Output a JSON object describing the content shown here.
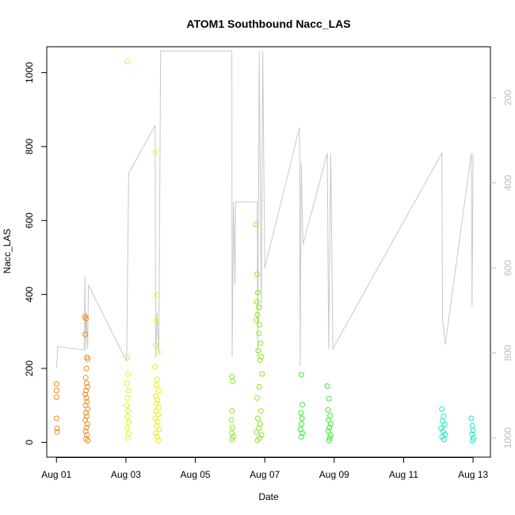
{
  "chart_data": {
    "type": "scatter",
    "title": "ATOM1 Southbound Nacc_LAS",
    "xlabel": "Date",
    "ylabel": "Nacc_LAS",
    "x_ticks": [
      "Aug 01",
      "Aug 03",
      "Aug 05",
      "Aug 07",
      "Aug 09",
      "Aug 11",
      "Aug 13"
    ],
    "y_ticks": [
      0,
      200,
      400,
      600,
      800,
      1000
    ],
    "y2_ticks": [
      200,
      400,
      600,
      800,
      1000
    ],
    "xlim_days": [
      0.72,
      13.5
    ],
    "ylim": [
      -40,
      1070
    ],
    "y2lim": [
      1045,
      80
    ],
    "y2_reversed": true,
    "grid": false,
    "colors": {
      "axis": "#000000",
      "secondary_axis": "#bdbdbd",
      "altitude_line": "#c8c8c8"
    },
    "secondary_series": {
      "name": "",
      "kind": "line",
      "color": "#c8c8c8",
      "points": [
        [
          1.0,
          835
        ],
        [
          1.04,
          785
        ],
        [
          1.8,
          793
        ],
        [
          1.82,
          620
        ],
        [
          1.84,
          793
        ],
        [
          1.86,
          705
        ],
        [
          1.9,
          790
        ],
        [
          1.92,
          640
        ],
        [
          3.02,
          820
        ],
        [
          3.08,
          378
        ],
        [
          3.84,
          265
        ],
        [
          3.86,
          812
        ],
        [
          3.9,
          705
        ],
        [
          3.95,
          800
        ],
        [
          4.0,
          90
        ],
        [
          4.3,
          90
        ],
        [
          6.05,
          90
        ],
        [
          6.06,
          810
        ],
        [
          6.1,
          445
        ],
        [
          6.14,
          640
        ],
        [
          6.16,
          445
        ],
        [
          6.78,
          445
        ],
        [
          6.8,
          810
        ],
        [
          6.84,
          90
        ],
        [
          6.9,
          700
        ],
        [
          6.94,
          90
        ],
        [
          7.0,
          600
        ],
        [
          8.0,
          270
        ],
        [
          8.02,
          830
        ],
        [
          8.05,
          350
        ],
        [
          8.1,
          545
        ],
        [
          8.8,
          330
        ],
        [
          8.84,
          790
        ],
        [
          8.9,
          330
        ],
        [
          8.96,
          790
        ],
        [
          12.1,
          330
        ],
        [
          12.12,
          720
        ],
        [
          12.2,
          780
        ],
        [
          12.95,
          330
        ],
        [
          12.97,
          690
        ],
        [
          13.0,
          330
        ]
      ]
    },
    "series": [
      {
        "color": "#f58a1a",
        "points": [
          [
            1.0,
            158
          ],
          [
            1.0,
            140
          ],
          [
            1.0,
            122
          ],
          [
            1.0,
            65
          ],
          [
            1.02,
            38
          ],
          [
            1.02,
            28
          ],
          [
            1.82,
            340
          ],
          [
            1.85,
            335
          ],
          [
            1.83,
            292
          ],
          [
            1.88,
            230
          ],
          [
            1.9,
            225
          ],
          [
            1.86,
            200
          ],
          [
            1.84,
            175
          ],
          [
            1.87,
            160
          ],
          [
            1.89,
            150
          ],
          [
            1.85,
            140
          ],
          [
            1.83,
            130
          ],
          [
            1.86,
            120
          ],
          [
            1.88,
            110
          ],
          [
            1.84,
            100
          ],
          [
            1.9,
            90
          ],
          [
            1.85,
            80
          ],
          [
            1.87,
            70
          ],
          [
            1.83,
            60
          ],
          [
            1.89,
            50
          ],
          [
            1.86,
            40
          ],
          [
            1.84,
            30
          ],
          [
            1.88,
            20
          ],
          [
            1.85,
            10
          ],
          [
            1.9,
            5
          ]
        ]
      },
      {
        "color": "#e6f010",
        "points": [
          [
            3.05,
            1030
          ],
          [
            3.04,
            230
          ],
          [
            3.06,
            185
          ],
          [
            3.03,
            160
          ],
          [
            3.07,
            140
          ],
          [
            3.05,
            120
          ],
          [
            3.02,
            100
          ],
          [
            3.06,
            85
          ],
          [
            3.04,
            70
          ],
          [
            3.08,
            55
          ],
          [
            3.03,
            40
          ],
          [
            3.07,
            25
          ],
          [
            3.05,
            12
          ],
          [
            3.85,
            785
          ],
          [
            3.9,
            398
          ],
          [
            3.88,
            330
          ],
          [
            3.86,
            262
          ],
          [
            3.92,
            245
          ],
          [
            3.84,
            205
          ],
          [
            3.9,
            170
          ],
          [
            3.88,
            155
          ],
          [
            3.95,
            140
          ],
          [
            3.86,
            125
          ],
          [
            3.91,
            115
          ],
          [
            3.89,
            105
          ],
          [
            3.94,
            95
          ],
          [
            3.87,
            85
          ],
          [
            3.93,
            75
          ],
          [
            3.85,
            65
          ],
          [
            3.92,
            55
          ],
          [
            3.88,
            45
          ],
          [
            3.96,
            35
          ],
          [
            3.86,
            25
          ],
          [
            3.9,
            15
          ],
          [
            3.94,
            5
          ]
        ]
      },
      {
        "color": "#8ae820",
        "points": [
          [
            6.05,
            178
          ],
          [
            6.08,
            165
          ],
          [
            6.06,
            85
          ],
          [
            6.04,
            60
          ],
          [
            6.07,
            40
          ],
          [
            6.05,
            25
          ],
          [
            6.09,
            15
          ],
          [
            6.06,
            8
          ],
          [
            6.75,
            590
          ],
          [
            6.78,
            455
          ],
          [
            6.8,
            405
          ],
          [
            6.77,
            380
          ],
          [
            6.82,
            365
          ],
          [
            6.79,
            345
          ],
          [
            6.76,
            330
          ],
          [
            6.85,
            318
          ],
          [
            6.83,
            295
          ],
          [
            6.88,
            268
          ],
          [
            6.81,
            248
          ],
          [
            6.9,
            232
          ],
          [
            6.86,
            222
          ],
          [
            6.92,
            185
          ],
          [
            6.84,
            150
          ],
          [
            6.78,
            120
          ],
          [
            6.89,
            85
          ],
          [
            6.8,
            65
          ],
          [
            6.87,
            50
          ],
          [
            6.83,
            38
          ],
          [
            6.76,
            28
          ],
          [
            6.91,
            20
          ],
          [
            6.85,
            12
          ],
          [
            6.79,
            6
          ]
        ]
      },
      {
        "color": "#3ae83a",
        "points": [
          [
            8.05,
            183
          ],
          [
            8.08,
            102
          ],
          [
            8.04,
            80
          ],
          [
            8.07,
            65
          ],
          [
            8.06,
            50
          ],
          [
            8.03,
            35
          ],
          [
            8.09,
            25
          ],
          [
            8.05,
            15
          ],
          [
            8.8,
            152
          ],
          [
            8.85,
            118
          ],
          [
            8.82,
            88
          ],
          [
            8.88,
            72
          ],
          [
            8.84,
            60
          ],
          [
            8.9,
            50
          ],
          [
            8.86,
            40
          ],
          [
            8.83,
            30
          ],
          [
            8.89,
            20
          ],
          [
            8.87,
            12
          ],
          [
            8.85,
            5
          ]
        ]
      },
      {
        "color": "#1ae8c2",
        "points": [
          [
            12.1,
            90
          ],
          [
            12.15,
            70
          ],
          [
            12.12,
            58
          ],
          [
            12.18,
            48
          ],
          [
            12.08,
            38
          ],
          [
            12.14,
            30
          ],
          [
            12.2,
            22
          ],
          [
            12.11,
            15
          ],
          [
            12.16,
            8
          ],
          [
            12.95,
            65
          ],
          [
            12.98,
            45
          ],
          [
            13.0,
            32
          ],
          [
            12.97,
            22
          ],
          [
            13.01,
            12
          ],
          [
            12.99,
            5
          ]
        ]
      }
    ]
  }
}
